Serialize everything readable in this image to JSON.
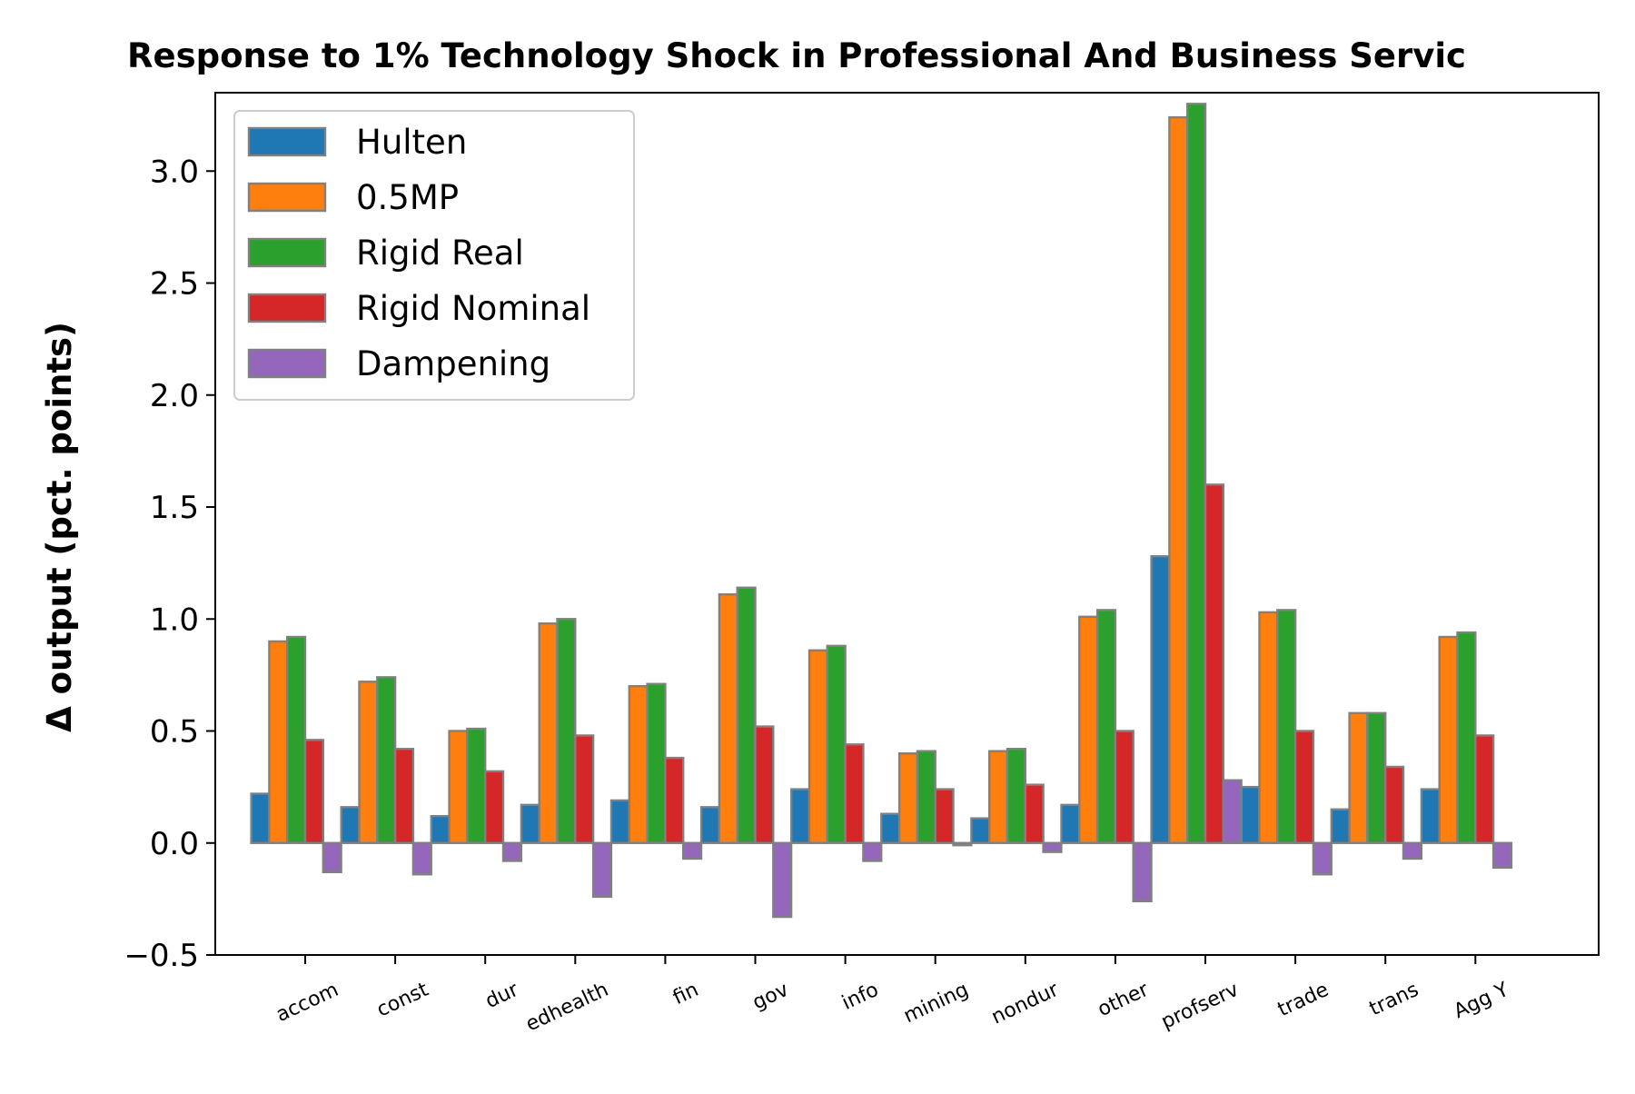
{
  "chart_data": {
    "type": "bar",
    "title": "Response to 1% Technology Shock in Professional And Business Servic",
    "xlabel": "",
    "ylabel": "Δ output (pct. points)",
    "ylim": [
      -0.5,
      3.35
    ],
    "yticks": [
      -0.5,
      0.0,
      0.5,
      1.0,
      1.5,
      2.0,
      2.5,
      3.0
    ],
    "ytick_labels": [
      "−0.5",
      "0.0",
      "0.5",
      "1.0",
      "1.5",
      "2.0",
      "2.5",
      "3.0"
    ],
    "categories": [
      "accom",
      "const",
      "dur",
      "edhealth",
      "fin",
      "gov",
      "info",
      "mining",
      "nondur",
      "other",
      "profserv",
      "trade",
      "trans",
      "Agg Y"
    ],
    "grid": false,
    "legend_position": "top-left",
    "series": [
      {
        "name": "Hulten",
        "color": "#1f77b4",
        "values": [
          0.22,
          0.16,
          0.12,
          0.17,
          0.19,
          0.16,
          0.24,
          0.13,
          0.11,
          0.17,
          1.28,
          0.25,
          0.15,
          0.24
        ]
      },
      {
        "name": "0.5MP",
        "color": "#ff7f0e",
        "values": [
          0.9,
          0.72,
          0.5,
          0.98,
          0.7,
          1.11,
          0.86,
          0.4,
          0.41,
          1.01,
          3.24,
          1.03,
          0.58,
          0.92
        ]
      },
      {
        "name": "Rigid Real",
        "color": "#2ca02c",
        "values": [
          0.92,
          0.74,
          0.51,
          1.0,
          0.71,
          1.14,
          0.88,
          0.41,
          0.42,
          1.04,
          3.3,
          1.04,
          0.58,
          0.94
        ]
      },
      {
        "name": "Rigid Nominal",
        "color": "#d62728",
        "values": [
          0.46,
          0.42,
          0.32,
          0.48,
          0.38,
          0.52,
          0.44,
          0.24,
          0.26,
          0.5,
          1.6,
          0.5,
          0.34,
          0.48
        ]
      },
      {
        "name": "Dampening",
        "color": "#9467bd",
        "values": [
          -0.13,
          -0.14,
          -0.08,
          -0.24,
          -0.07,
          -0.33,
          -0.08,
          -0.01,
          -0.04,
          -0.26,
          0.28,
          -0.14,
          -0.07,
          -0.11
        ]
      }
    ]
  }
}
